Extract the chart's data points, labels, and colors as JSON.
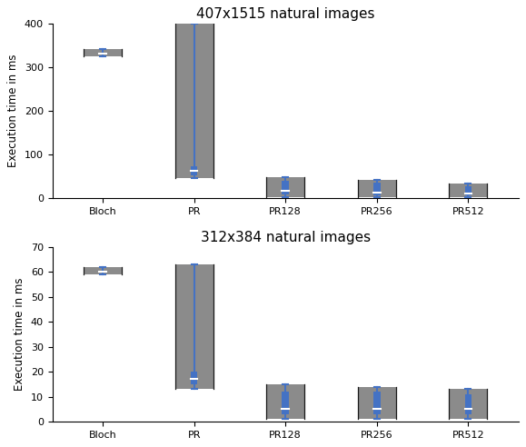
{
  "title1": "407x1515 natural images",
  "title2": "312x384 natural images",
  "ylabel": "Execution time in ms",
  "categories": [
    "Bloch",
    "PR",
    "PR128",
    "PR256",
    "PR512"
  ],
  "violin_color": "#7f7f7f",
  "violin_edge_color": "#1a1a1a",
  "box_color": "#4472c4",
  "bg_color": "#ffffff",
  "plot1": {
    "Bloch": {
      "samples": [
        325,
        326,
        327,
        327,
        328,
        328,
        329,
        329,
        330,
        330,
        330,
        331,
        331,
        331,
        331,
        332,
        332,
        332,
        332,
        332,
        332,
        333,
        333,
        333,
        333,
        334,
        334,
        334,
        335,
        335,
        336,
        336,
        337,
        338,
        340,
        342
      ],
      "q1": 330,
      "median": 332,
      "q3": 334,
      "whislo": 325,
      "whishi": 342
    },
    "PR": {
      "samples_low": [
        45,
        48,
        50,
        52,
        55,
        58,
        60,
        62,
        65,
        68,
        70,
        75,
        80,
        90,
        100,
        120,
        150,
        180,
        220,
        280,
        350,
        390,
        395,
        398,
        400
      ],
      "q1": 52,
      "median": 62,
      "q3": 72,
      "whislo": 45,
      "whishi": 400
    },
    "PR128": {
      "samples": [
        2,
        3,
        4,
        5,
        6,
        7,
        8,
        9,
        10,
        11,
        12,
        14,
        16,
        18,
        20,
        25,
        30,
        35,
        38,
        40,
        42,
        44,
        46,
        48
      ],
      "q1": 8,
      "median": 16,
      "q3": 40,
      "whislo": 2,
      "whishi": 48
    },
    "PR256": {
      "samples": [
        2,
        3,
        4,
        5,
        6,
        7,
        8,
        9,
        10,
        11,
        12,
        13,
        15,
        18,
        20,
        24,
        28,
        32,
        36,
        38,
        40,
        42
      ],
      "q1": 7,
      "median": 13,
      "q3": 36,
      "whislo": 2,
      "whishi": 42
    },
    "PR512": {
      "samples": [
        2,
        3,
        4,
        5,
        6,
        7,
        8,
        9,
        10,
        11,
        12,
        14,
        16,
        18,
        20,
        22,
        24,
        26,
        28,
        30,
        32,
        34
      ],
      "q1": 6,
      "median": 11,
      "q3": 28,
      "whislo": 2,
      "whishi": 34
    }
  },
  "plot2": {
    "Bloch": {
      "samples": [
        59.0,
        59.2,
        59.4,
        59.5,
        59.6,
        59.7,
        59.8,
        59.9,
        60.0,
        60.0,
        60.1,
        60.1,
        60.2,
        60.2,
        60.3,
        60.4,
        60.5,
        60.6,
        60.8,
        61.0,
        61.2,
        61.5,
        62.0
      ],
      "q1": 59.8,
      "median": 60.1,
      "q3": 60.5,
      "whislo": 59.0,
      "whishi": 62.0
    },
    "PR": {
      "samples": [
        13,
        14,
        15,
        16,
        17,
        18,
        19,
        20,
        22,
        25,
        28,
        32,
        36,
        40,
        45,
        50,
        55,
        58,
        60,
        62,
        63
      ],
      "q1": 15,
      "median": 17,
      "q3": 20,
      "whislo": 13,
      "whishi": 63
    },
    "PR128": {
      "samples": [
        1,
        1.5,
        2,
        2.5,
        3,
        3.5,
        4,
        4.5,
        5,
        5.5,
        6,
        6.5,
        7,
        7.5,
        8,
        9,
        10,
        11,
        12,
        13,
        14,
        15
      ],
      "q1": 3,
      "median": 5,
      "q3": 12,
      "whislo": 1,
      "whishi": 15
    },
    "PR256": {
      "samples": [
        1,
        1.5,
        2,
        2.5,
        3,
        3.5,
        4,
        4.5,
        5,
        5.5,
        6,
        6.5,
        7,
        7.5,
        8,
        9,
        10,
        11,
        12,
        13,
        14
      ],
      "q1": 3,
      "median": 5,
      "q3": 12,
      "whislo": 1,
      "whishi": 14
    },
    "PR512": {
      "samples": [
        1,
        1.5,
        2,
        2.5,
        3,
        3.5,
        4,
        4.5,
        5,
        5.5,
        6,
        6.5,
        7,
        7.5,
        8,
        9,
        10,
        11,
        12,
        13
      ],
      "q1": 3,
      "median": 5,
      "q3": 11,
      "whislo": 1,
      "whishi": 13
    }
  },
  "ylim1": [
    0,
    400
  ],
  "ylim2": [
    0,
    70
  ],
  "yticks1": [
    0,
    100,
    200,
    300,
    400
  ],
  "yticks2": [
    0,
    10,
    20,
    30,
    40,
    50,
    60,
    70
  ],
  "figsize": [
    5.79,
    4.92
  ],
  "dpi": 100
}
